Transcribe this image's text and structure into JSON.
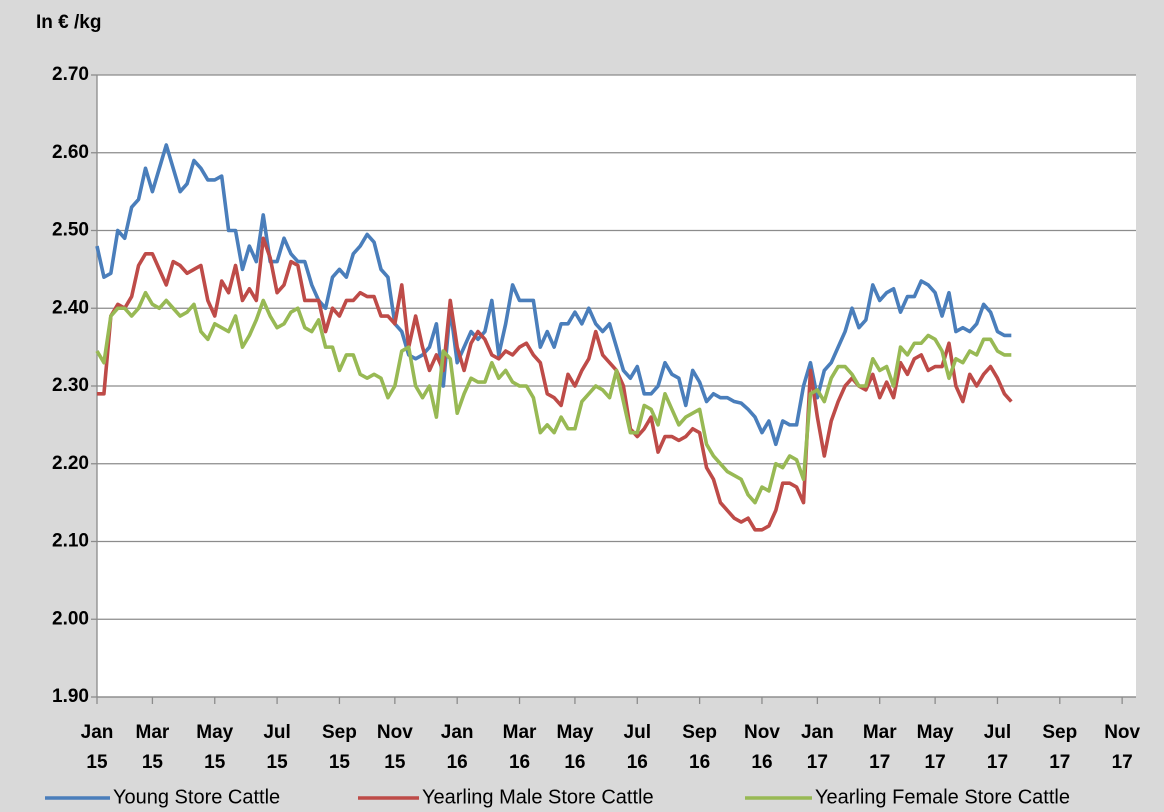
{
  "chart_data": {
    "type": "line",
    "title": "In € /kg",
    "categories": [
      "Jan 15",
      null,
      null,
      null,
      null,
      null,
      null,
      null,
      "Mar 15",
      null,
      null,
      null,
      null,
      null,
      null,
      null,
      null,
      "May 15",
      null,
      null,
      null,
      null,
      null,
      null,
      null,
      null,
      "Jul 15",
      null,
      null,
      null,
      null,
      null,
      null,
      null,
      null,
      "Sep 15",
      null,
      null,
      null,
      null,
      null,
      null,
      null,
      "Nov 15",
      null,
      null,
      null,
      null,
      null,
      null,
      null,
      null,
      "Jan 16",
      null,
      null,
      null,
      null,
      null,
      null,
      null,
      null,
      "Mar 16",
      null,
      null,
      null,
      null,
      null,
      null,
      null,
      "May 16",
      null,
      null,
      null,
      null,
      null,
      null,
      null,
      null,
      "Jul 16",
      null,
      null,
      null,
      null,
      null,
      null,
      null,
      null,
      "Sep 16",
      null,
      null,
      null,
      null,
      null,
      null,
      null,
      null,
      "Nov 16",
      null,
      null,
      null,
      null,
      null,
      null,
      null,
      "Jan 17",
      null,
      null,
      null,
      null,
      null,
      null,
      null,
      null,
      "Mar 17",
      null,
      null,
      null,
      null,
      null,
      null,
      null,
      "May 17",
      null,
      null,
      null,
      null,
      null,
      null,
      null,
      null,
      "Jul 17",
      null,
      null,
      null,
      null,
      null,
      null,
      null,
      null,
      "Sep 17",
      null,
      null,
      null,
      null,
      null,
      null,
      null,
      null,
      "Nov 17",
      null,
      null
    ],
    "series": [
      {
        "name": "Young Store Cattle",
        "color": "#4a7ebb",
        "values": [
          2.48,
          2.44,
          2.445,
          2.5,
          2.49,
          2.53,
          2.54,
          2.58,
          2.55,
          2.58,
          2.61,
          2.58,
          2.55,
          2.56,
          2.59,
          2.58,
          2.565,
          2.565,
          2.57,
          2.5,
          2.5,
          2.45,
          2.48,
          2.46,
          2.52,
          2.46,
          2.46,
          2.49,
          2.47,
          2.46,
          2.46,
          2.43,
          2.41,
          2.4,
          2.44,
          2.45,
          2.44,
          2.47,
          2.48,
          2.495,
          2.485,
          2.45,
          2.44,
          2.38,
          2.37,
          2.34,
          2.335,
          2.34,
          2.35,
          2.38,
          2.3,
          2.4,
          2.33,
          2.35,
          2.37,
          2.36,
          2.37,
          2.41,
          2.34,
          2.38,
          2.43,
          2.41,
          2.41,
          2.41,
          2.35,
          2.37,
          2.35,
          2.38,
          2.38,
          2.395,
          2.38,
          2.4,
          2.38,
          2.37,
          2.38,
          2.35,
          2.32,
          2.31,
          2.325,
          2.29,
          2.29,
          2.3,
          2.33,
          2.315,
          2.31,
          2.275,
          2.32,
          2.305,
          2.28,
          2.29,
          2.285,
          2.285,
          2.28,
          2.278,
          2.27,
          2.26,
          2.24,
          2.255,
          2.225,
          2.255,
          2.25,
          2.25,
          2.3,
          2.33,
          2.285,
          2.32,
          2.33,
          2.35,
          2.37,
          2.4,
          2.375,
          2.385,
          2.43,
          2.41,
          2.42,
          2.425,
          2.395,
          2.415,
          2.415,
          2.435,
          2.43,
          2.42,
          2.39,
          2.42,
          2.37,
          2.375,
          2.37,
          2.38,
          2.405,
          2.395,
          2.37,
          2.365,
          2.365,
          null,
          null,
          null,
          null,
          null,
          null,
          null,
          null,
          null,
          null,
          null,
          null,
          null,
          null,
          null,
          null,
          null,
          null
        ]
      },
      {
        "name": "Yearling Male Store Cattle",
        "color": "#be4b48",
        "values": [
          2.29,
          2.29,
          2.39,
          2.405,
          2.4,
          2.415,
          2.455,
          2.47,
          2.47,
          2.45,
          2.43,
          2.46,
          2.455,
          2.445,
          2.45,
          2.455,
          2.41,
          2.39,
          2.435,
          2.42,
          2.455,
          2.41,
          2.425,
          2.41,
          2.49,
          2.465,
          2.42,
          2.43,
          2.46,
          2.455,
          2.41,
          2.41,
          2.41,
          2.37,
          2.4,
          2.39,
          2.41,
          2.41,
          2.42,
          2.415,
          2.415,
          2.39,
          2.39,
          2.38,
          2.43,
          2.35,
          2.39,
          2.35,
          2.32,
          2.34,
          2.32,
          2.41,
          2.35,
          2.32,
          2.355,
          2.37,
          2.36,
          2.34,
          2.335,
          2.345,
          2.34,
          2.35,
          2.355,
          2.34,
          2.33,
          2.29,
          2.285,
          2.275,
          2.315,
          2.3,
          2.32,
          2.335,
          2.37,
          2.34,
          2.33,
          2.32,
          2.3,
          2.245,
          2.235,
          2.245,
          2.26,
          2.215,
          2.235,
          2.235,
          2.23,
          2.235,
          2.245,
          2.24,
          2.195,
          2.18,
          2.15,
          2.14,
          2.13,
          2.125,
          2.13,
          2.115,
          2.115,
          2.12,
          2.14,
          2.175,
          2.175,
          2.17,
          2.15,
          2.32,
          2.26,
          2.21,
          2.255,
          2.28,
          2.3,
          2.31,
          2.3,
          2.295,
          2.315,
          2.285,
          2.305,
          2.285,
          2.33,
          2.315,
          2.335,
          2.34,
          2.32,
          2.325,
          2.325,
          2.355,
          2.3,
          2.28,
          2.315,
          2.3,
          2.315,
          2.325,
          2.31,
          2.29,
          2.28,
          null,
          null,
          null,
          null,
          null,
          null,
          null,
          null,
          null,
          null,
          null,
          null,
          null,
          null,
          null,
          null,
          null,
          null
        ]
      },
      {
        "name": "Yearling Female Store Cattle",
        "color": "#98b954",
        "values": [
          2.345,
          2.33,
          2.39,
          2.4,
          2.4,
          2.39,
          2.4,
          2.42,
          2.405,
          2.4,
          2.41,
          2.4,
          2.39,
          2.395,
          2.405,
          2.37,
          2.36,
          2.38,
          2.375,
          2.37,
          2.39,
          2.35,
          2.365,
          2.385,
          2.41,
          2.39,
          2.375,
          2.38,
          2.395,
          2.4,
          2.375,
          2.37,
          2.385,
          2.35,
          2.35,
          2.32,
          2.34,
          2.34,
          2.315,
          2.31,
          2.315,
          2.31,
          2.285,
          2.3,
          2.345,
          2.35,
          2.3,
          2.285,
          2.3,
          2.26,
          2.345,
          2.335,
          2.265,
          2.29,
          2.31,
          2.305,
          2.305,
          2.33,
          2.31,
          2.32,
          2.305,
          2.3,
          2.3,
          2.285,
          2.24,
          2.25,
          2.24,
          2.26,
          2.245,
          2.245,
          2.28,
          2.29,
          2.3,
          2.295,
          2.285,
          2.32,
          2.28,
          2.24,
          2.24,
          2.275,
          2.27,
          2.25,
          2.29,
          2.27,
          2.25,
          2.26,
          2.265,
          2.27,
          2.225,
          2.21,
          2.2,
          2.19,
          2.185,
          2.18,
          2.16,
          2.15,
          2.17,
          2.165,
          2.2,
          2.195,
          2.21,
          2.205,
          2.18,
          2.29,
          2.295,
          2.28,
          2.31,
          2.325,
          2.325,
          2.315,
          2.3,
          2.3,
          2.335,
          2.32,
          2.325,
          2.3,
          2.35,
          2.34,
          2.355,
          2.355,
          2.365,
          2.36,
          2.345,
          2.31,
          2.335,
          2.33,
          2.345,
          2.34,
          2.36,
          2.36,
          2.345,
          2.34,
          2.34,
          null,
          null,
          null,
          null,
          null,
          null,
          null,
          null,
          null,
          null,
          null,
          null,
          null,
          null,
          null,
          null,
          null,
          null
        ]
      }
    ],
    "ylim": [
      1.9,
      2.7
    ],
    "yticks": [
      {
        "value": 1.9,
        "label": "1.90"
      },
      {
        "value": 2.0,
        "label": "2.00"
      },
      {
        "value": 2.1,
        "label": "2.10"
      },
      {
        "value": 2.2,
        "label": "2.20"
      },
      {
        "value": 2.3,
        "label": "2.30"
      },
      {
        "value": 2.4,
        "label": "2.40"
      },
      {
        "value": 2.5,
        "label": "2.50"
      },
      {
        "value": 2.6,
        "label": "2.60"
      },
      {
        "value": 2.7,
        "label": "2.70"
      }
    ],
    "grid": true,
    "legend": "bottom"
  }
}
